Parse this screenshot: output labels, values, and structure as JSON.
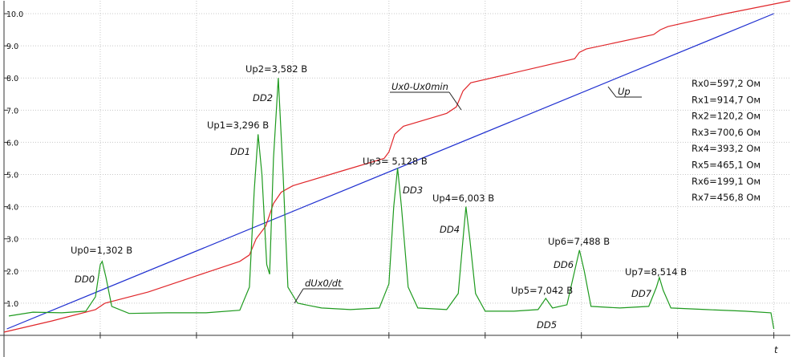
{
  "chart_data": {
    "type": "line",
    "x_label": "t",
    "xlim": [
      0,
      8.17
    ],
    "xticks": [
      1,
      2,
      3,
      4,
      5,
      6,
      7,
      8
    ],
    "ylim": [
      0,
      10.4
    ],
    "yticks": [
      {
        "value": 1,
        "label": "1.0"
      },
      {
        "value": 2,
        "label": "2.0"
      },
      {
        "value": 3,
        "label": "3.0"
      },
      {
        "value": 4,
        "label": "4.0"
      },
      {
        "value": 5,
        "label": "5.0"
      },
      {
        "value": 6,
        "label": "6.0"
      },
      {
        "value": 7,
        "label": "7.0"
      },
      {
        "value": 8,
        "label": "8.0"
      },
      {
        "value": 9,
        "label": "9.0"
      },
      {
        "value": 10,
        "label": "10.0"
      }
    ],
    "grid": true,
    "series": [
      {
        "name": "Up",
        "color": "#1f2fd0",
        "x": [
          0.03,
          8.0
        ],
        "values": [
          0.2,
          10.0
        ]
      },
      {
        "name": "Ux0-Ux0min",
        "color": "#e0262a",
        "x": [
          0,
          0.5,
          0.95,
          1.05,
          1.5,
          2.0,
          2.45,
          2.55,
          2.62,
          2.72,
          2.8,
          2.88,
          3.0,
          3.5,
          3.95,
          4.0,
          4.06,
          4.15,
          4.6,
          4.7,
          4.77,
          4.85,
          5.5,
          5.93,
          5.98,
          6.05,
          6.75,
          6.82,
          6.9,
          7.5,
          8.17
        ],
        "values": [
          0.1,
          0.45,
          0.8,
          1.0,
          1.35,
          1.85,
          2.3,
          2.5,
          3.0,
          3.4,
          4.1,
          4.45,
          4.65,
          5.1,
          5.5,
          5.7,
          6.25,
          6.5,
          6.9,
          7.1,
          7.6,
          7.85,
          8.3,
          8.6,
          8.8,
          8.9,
          9.35,
          9.5,
          9.6,
          10.0,
          10.4
        ]
      },
      {
        "name": "dUx0/dt",
        "color": "#1e9a1e",
        "x": [
          0.05,
          0.3,
          0.6,
          0.85,
          0.95,
          1.0,
          1.02,
          1.06,
          1.12,
          1.3,
          1.7,
          2.1,
          2.45,
          2.55,
          2.6,
          2.64,
          2.68,
          2.73,
          2.76,
          2.8,
          2.85,
          2.9,
          2.95,
          3.05,
          3.3,
          3.6,
          3.9,
          4.0,
          4.05,
          4.09,
          4.13,
          4.2,
          4.3,
          4.6,
          4.72,
          4.77,
          4.8,
          4.84,
          4.9,
          5.0,
          5.3,
          5.55,
          5.63,
          5.7,
          5.85,
          5.93,
          5.98,
          6.03,
          6.1,
          6.4,
          6.7,
          6.78,
          6.81,
          6.85,
          6.93,
          7.3,
          7.7,
          7.97,
          8.0
        ],
        "values": [
          0.6,
          0.72,
          0.7,
          0.75,
          1.2,
          2.2,
          2.3,
          1.8,
          0.9,
          0.68,
          0.7,
          0.7,
          0.78,
          1.5,
          4.5,
          6.25,
          5.0,
          2.2,
          1.9,
          5.5,
          8.0,
          5.0,
          1.5,
          1.0,
          0.85,
          0.8,
          0.85,
          1.6,
          4.0,
          5.2,
          4.0,
          1.5,
          0.85,
          0.8,
          1.3,
          3.0,
          4.0,
          3.0,
          1.3,
          0.75,
          0.75,
          0.8,
          1.15,
          0.85,
          0.95,
          2.0,
          2.65,
          2.0,
          0.9,
          0.85,
          0.9,
          1.5,
          1.8,
          1.4,
          0.85,
          0.8,
          0.75,
          0.7,
          0.2
        ]
      }
    ],
    "annotations": [
      "Up0=1,302 В",
      "DD0",
      "Up1=3,296 В",
      "DD1",
      "Up2=3,582 В",
      "DD2",
      "Up3= 5,128 В",
      "DD3",
      "Up4=6,003 В",
      "DD4",
      "Up5=7,042 В",
      "DD5",
      "Up6=7,488 В",
      "DD6",
      "Up7=8,514 В",
      "DD7"
    ],
    "results": [
      "Rx0=597,2 Ом",
      "Rx1=914,7 Ом",
      "Rx2=120,2 Ом",
      "Rx3=700,6 Ом",
      "Rx4=393,2 Ом",
      "Rx5=465,1 Ом",
      "Rx6=199,1 Ом",
      "Rx7=456,8 Ом"
    ]
  }
}
